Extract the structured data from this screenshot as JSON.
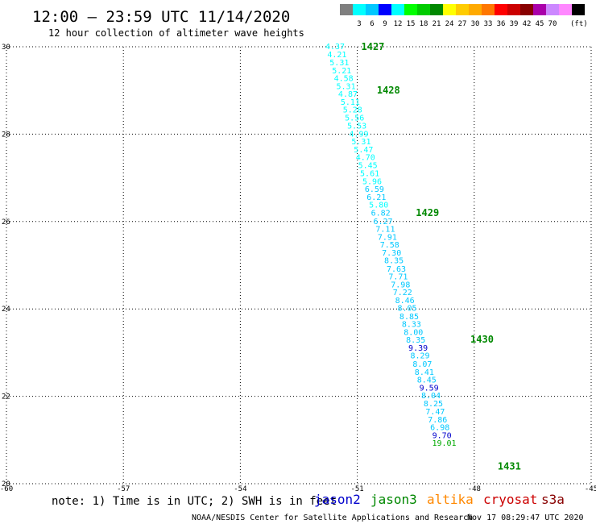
{
  "header": {
    "title": "12:00 – 23:59 UTC 11/14/2020",
    "subtitle": "12 hour collection of altimeter wave heights"
  },
  "colorbar": {
    "colors": [
      "#7f7f7f",
      "#00ffff",
      "#00c8ff",
      "#0000ff",
      "#00ffff",
      "#00ff00",
      "#00cc00",
      "#008800",
      "#ffff00",
      "#ffcc00",
      "#ffaa00",
      "#ff7700",
      "#ff0000",
      "#cc0000",
      "#880000",
      "#aa00aa",
      "#cc88ff",
      "#ff88ff",
      "#000000"
    ],
    "tick_labels": [
      "3",
      "6",
      "9",
      "12",
      "15",
      "18",
      "21",
      "24",
      "27",
      "30",
      "33",
      "36",
      "39",
      "42",
      "45",
      "70"
    ],
    "unit_label": "(ft)"
  },
  "footer": {
    "note": "note: 1) Time is in UTC; 2) SWH is in feet",
    "credit": "NOAA/NESDIS Center for Satellite Applications and Research",
    "timestamp": "Nov 17 08:29:47 UTC 2020"
  },
  "legend": [
    {
      "label": "jason2",
      "color": "#0000cc"
    },
    {
      "label": "jason3",
      "color": "#008800"
    },
    {
      "label": "altika",
      "color": "#ff8800"
    },
    {
      "label": "cryosat",
      "color": "#cc0000"
    },
    {
      "label": "s3a",
      "color": "#880000"
    }
  ],
  "chart_data": {
    "type": "scatter",
    "title": "",
    "xlabel": "",
    "ylabel": "",
    "xlim": [
      -60,
      -45
    ],
    "ylim": [
      20,
      30
    ],
    "x_ticks": [
      "-60",
      "-57",
      "-54",
      "-51",
      "-48",
      "-45"
    ],
    "x_tick_values": [
      -60,
      -57,
      -54,
      -51,
      -48,
      -45
    ],
    "y_ticks": [
      "20",
      "22",
      "24",
      "26",
      "28",
      "30"
    ],
    "y_tick_values": [
      20,
      22,
      24,
      26,
      28,
      30
    ],
    "grid": true,
    "series": [
      {
        "name": "",
        "points": [
          {
            "lon": -51.57,
            "lat": 30.0,
            "swh": "4.37",
            "color": "#00ffff"
          },
          {
            "lon": -51.52,
            "lat": 29.82,
            "swh": "4.21",
            "color": "#00ffff"
          },
          {
            "lon": -51.46,
            "lat": 29.63,
            "swh": "5.31",
            "color": "#00ffff"
          },
          {
            "lon": -51.4,
            "lat": 29.45,
            "swh": "5.21",
            "color": "#00ffff"
          },
          {
            "lon": -51.35,
            "lat": 29.27,
            "swh": "4.58",
            "color": "#00ffff"
          },
          {
            "lon": -51.29,
            "lat": 29.09,
            "swh": "5.31",
            "color": "#00ffff"
          },
          {
            "lon": -51.24,
            "lat": 28.91,
            "swh": "4.87",
            "color": "#00ffff"
          },
          {
            "lon": -51.18,
            "lat": 28.73,
            "swh": "5.11",
            "color": "#00ffff"
          },
          {
            "lon": -51.12,
            "lat": 28.55,
            "swh": "5.28",
            "color": "#00ffff"
          },
          {
            "lon": -51.07,
            "lat": 28.37,
            "swh": "5.56",
            "color": "#00ffff"
          },
          {
            "lon": -51.01,
            "lat": 28.18,
            "swh": "5.53",
            "color": "#00ffff"
          },
          {
            "lon": -50.96,
            "lat": 28.0,
            "swh": "4.99",
            "color": "#00ffff"
          },
          {
            "lon": -50.9,
            "lat": 27.82,
            "swh": "5.31",
            "color": "#00ffff"
          },
          {
            "lon": -50.84,
            "lat": 27.64,
            "swh": "5.47",
            "color": "#00ffff"
          },
          {
            "lon": -50.79,
            "lat": 27.46,
            "swh": "4.70",
            "color": "#00ffff"
          },
          {
            "lon": -50.73,
            "lat": 27.28,
            "swh": "5.45",
            "color": "#00ffff"
          },
          {
            "lon": -50.68,
            "lat": 27.09,
            "swh": "5.61",
            "color": "#00ffff"
          },
          {
            "lon": -50.62,
            "lat": 26.91,
            "swh": "5.96",
            "color": "#00ffff"
          },
          {
            "lon": -50.56,
            "lat": 26.73,
            "swh": "6.59",
            "color": "#00c8ff"
          },
          {
            "lon": -50.51,
            "lat": 26.55,
            "swh": "6.21",
            "color": "#00c8ff"
          },
          {
            "lon": -50.45,
            "lat": 26.37,
            "swh": "5.80",
            "color": "#00ffff"
          },
          {
            "lon": -50.4,
            "lat": 26.19,
            "swh": "6.82",
            "color": "#00c8ff"
          },
          {
            "lon": -50.34,
            "lat": 26.0,
            "swh": "6.27",
            "color": "#00c8ff"
          },
          {
            "lon": -50.28,
            "lat": 25.82,
            "swh": "7.11",
            "color": "#00c8ff"
          },
          {
            "lon": -50.23,
            "lat": 25.64,
            "swh": "7.91",
            "color": "#00c8ff"
          },
          {
            "lon": -50.17,
            "lat": 25.46,
            "swh": "7.58",
            "color": "#00c8ff"
          },
          {
            "lon": -50.12,
            "lat": 25.28,
            "swh": "7.30",
            "color": "#00c8ff"
          },
          {
            "lon": -50.06,
            "lat": 25.1,
            "swh": "8.35",
            "color": "#00c8ff"
          },
          {
            "lon": -50.0,
            "lat": 24.91,
            "swh": "7.63",
            "color": "#00c8ff"
          },
          {
            "lon": -49.95,
            "lat": 24.73,
            "swh": "7.71",
            "color": "#00c8ff"
          },
          {
            "lon": -49.89,
            "lat": 24.55,
            "swh": "7.98",
            "color": "#00c8ff"
          },
          {
            "lon": -49.84,
            "lat": 24.37,
            "swh": "7.22",
            "color": "#00c8ff"
          },
          {
            "lon": -49.78,
            "lat": 24.19,
            "swh": "8.46",
            "color": "#00c8ff"
          },
          {
            "lon": -49.72,
            "lat": 24.01,
            "swh": "8.05",
            "color": "#00c8ff"
          },
          {
            "lon": -49.67,
            "lat": 23.82,
            "swh": "8.85",
            "color": "#00c8ff"
          },
          {
            "lon": -49.61,
            "lat": 23.64,
            "swh": "8.33",
            "color": "#00c8ff"
          },
          {
            "lon": -49.56,
            "lat": 23.46,
            "swh": "8.00",
            "color": "#00c8ff"
          },
          {
            "lon": -49.5,
            "lat": 23.28,
            "swh": "8.35",
            "color": "#00c8ff"
          },
          {
            "lon": -49.44,
            "lat": 23.1,
            "swh": "9.39",
            "color": "#0000cc"
          },
          {
            "lon": -49.39,
            "lat": 22.92,
            "swh": "8.29",
            "color": "#00c8ff"
          },
          {
            "lon": -49.33,
            "lat": 22.73,
            "swh": "8.07",
            "color": "#00c8ff"
          },
          {
            "lon": -49.28,
            "lat": 22.55,
            "swh": "8.41",
            "color": "#00c8ff"
          },
          {
            "lon": -49.22,
            "lat": 22.37,
            "swh": "8.45",
            "color": "#00c8ff"
          },
          {
            "lon": -49.16,
            "lat": 22.19,
            "swh": "9.59",
            "color": "#0000cc"
          },
          {
            "lon": -49.11,
            "lat": 22.01,
            "swh": "8.04",
            "color": "#00c8ff"
          },
          {
            "lon": -49.05,
            "lat": 21.83,
            "swh": "8.25",
            "color": "#00c8ff"
          },
          {
            "lon": -49.0,
            "lat": 21.64,
            "swh": "7.47",
            "color": "#00c8ff"
          },
          {
            "lon": -48.94,
            "lat": 21.46,
            "swh": "7.86",
            "color": "#00c8ff"
          },
          {
            "lon": -48.88,
            "lat": 21.28,
            "swh": "6.98",
            "color": "#00c8ff"
          },
          {
            "lon": -48.83,
            "lat": 21.1,
            "swh": "9.70",
            "color": "#0000cc"
          },
          {
            "lon": -48.77,
            "lat": 20.92,
            "swh": "19.01",
            "color": "#00aa00"
          }
        ]
      }
    ],
    "time_annotations": [
      {
        "label": "1427",
        "lon": -50.6,
        "lat": 30.0
      },
      {
        "label": "1428",
        "lon": -50.2,
        "lat": 29.0
      },
      {
        "label": "1429",
        "lon": -49.2,
        "lat": 26.2
      },
      {
        "label": "1430",
        "lon": -47.8,
        "lat": 23.3
      },
      {
        "label": "1431",
        "lon": -47.1,
        "lat": 20.4
      }
    ]
  }
}
